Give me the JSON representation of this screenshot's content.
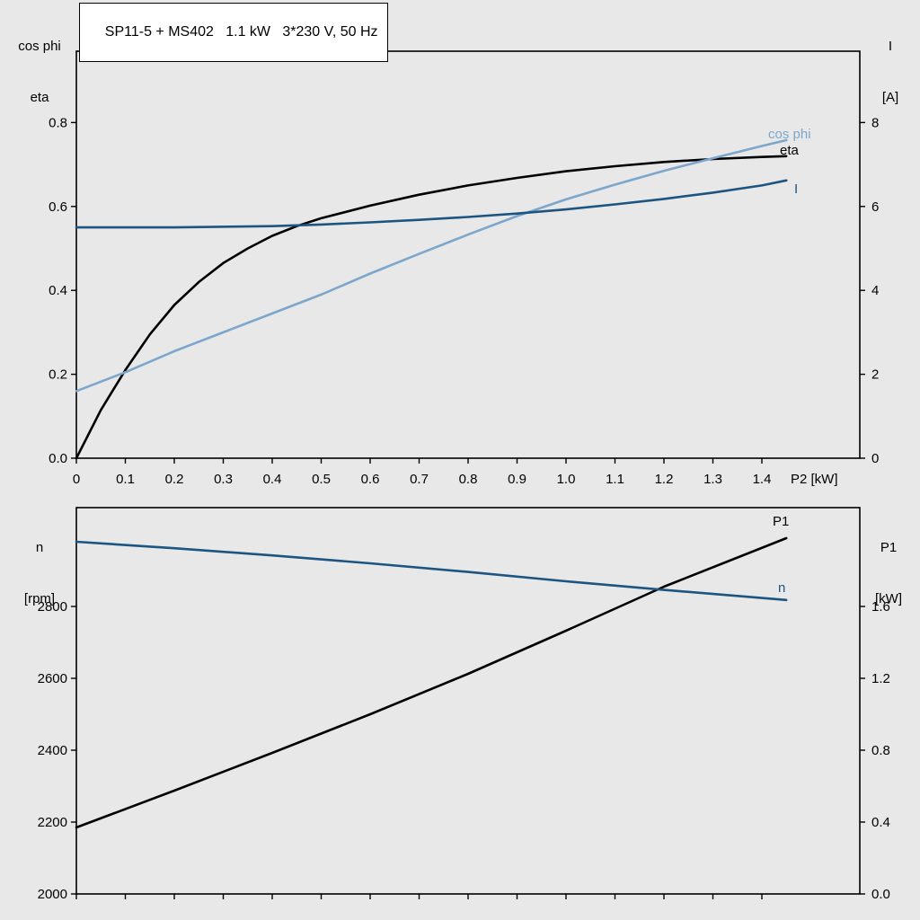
{
  "title_box": {
    "text": "SP11-5 + MS402   1.1 kW   3*230 V, 50 Hz"
  },
  "colors": {
    "black": "#000000",
    "dark_blue": "#1d5480",
    "light_blue": "#7da6cc",
    "frame": "#000000",
    "background": "#e8e8e8",
    "title_box_bg": "#ffffff"
  },
  "axis_corner_labels": {
    "top_left_line1": "cos phi",
    "top_left_line2": "eta",
    "top_right_line1": "I",
    "top_right_line2": "[A]",
    "bottom_left_line1": "n",
    "bottom_left_line2": "[rpm]",
    "bottom_right_line1": "P1",
    "bottom_right_line2": "[kW]",
    "x_axis_label": "P2 [kW]"
  },
  "curve_labels": {
    "cos_phi": "cos phi",
    "eta": "eta",
    "current": "I",
    "p1": "P1",
    "n": "n"
  },
  "chart_data": [
    {
      "type": "line",
      "title": "SP11-5 + MS402 1.1 kW 3*230 V, 50 Hz",
      "x_axis": {
        "label": "P2 [kW]",
        "range": [
          0,
          1.6
        ],
        "tick_values": [
          0,
          0.1,
          0.2,
          0.3,
          0.4,
          0.5,
          0.6,
          0.7,
          0.8,
          0.9,
          1.0,
          1.1,
          1.2,
          1.3,
          1.4
        ],
        "tick_labels": [
          "0",
          "0.1",
          "0.2",
          "0.3",
          "0.4",
          "0.5",
          "0.6",
          "0.7",
          "0.8",
          "0.9",
          "1.0",
          "1.1",
          "1.2",
          "1.3",
          "1.4"
        ]
      },
      "y_axis_left": {
        "label": "cos phi / eta",
        "range": [
          0,
          0.97
        ],
        "tick_values": [
          0.0,
          0.2,
          0.4,
          0.6,
          0.8
        ],
        "tick_labels": [
          "0.0",
          "0.2",
          "0.4",
          "0.6",
          "0.8"
        ]
      },
      "y_axis_right": {
        "label": "I [A]",
        "range": [
          0,
          9.7
        ],
        "tick_values": [
          0,
          2,
          4,
          6,
          8
        ],
        "tick_labels": [
          "0",
          "2",
          "4",
          "6",
          "8"
        ]
      },
      "grid": false,
      "series": [
        {
          "name": "eta",
          "axis": "left",
          "color": "black",
          "points": [
            [
              0,
              0
            ],
            [
              0.05,
              0.115
            ],
            [
              0.1,
              0.21
            ],
            [
              0.15,
              0.295
            ],
            [
              0.2,
              0.365
            ],
            [
              0.25,
              0.42
            ],
            [
              0.3,
              0.465
            ],
            [
              0.35,
              0.5
            ],
            [
              0.4,
              0.53
            ],
            [
              0.45,
              0.553
            ],
            [
              0.5,
              0.572
            ],
            [
              0.6,
              0.602
            ],
            [
              0.7,
              0.628
            ],
            [
              0.8,
              0.65
            ],
            [
              0.9,
              0.668
            ],
            [
              1.0,
              0.684
            ],
            [
              1.1,
              0.696
            ],
            [
              1.2,
              0.706
            ],
            [
              1.3,
              0.713
            ],
            [
              1.4,
              0.718
            ],
            [
              1.45,
              0.72
            ]
          ]
        },
        {
          "name": "cos phi",
          "axis": "left",
          "color": "light_blue",
          "points": [
            [
              0,
              0.16
            ],
            [
              0.1,
              0.205
            ],
            [
              0.2,
              0.255
            ],
            [
              0.3,
              0.3
            ],
            [
              0.4,
              0.345
            ],
            [
              0.5,
              0.39
            ],
            [
              0.6,
              0.44
            ],
            [
              0.7,
              0.487
            ],
            [
              0.8,
              0.533
            ],
            [
              0.9,
              0.577
            ],
            [
              1.0,
              0.617
            ],
            [
              1.1,
              0.652
            ],
            [
              1.2,
              0.685
            ],
            [
              1.3,
              0.715
            ],
            [
              1.4,
              0.744
            ],
            [
              1.45,
              0.758
            ]
          ]
        },
        {
          "name": "I",
          "axis": "right",
          "color": "dark_blue",
          "points": [
            [
              0,
              5.5
            ],
            [
              0.2,
              5.5
            ],
            [
              0.4,
              5.53
            ],
            [
              0.5,
              5.57
            ],
            [
              0.6,
              5.62
            ],
            [
              0.7,
              5.68
            ],
            [
              0.8,
              5.75
            ],
            [
              0.9,
              5.83
            ],
            [
              1.0,
              5.93
            ],
            [
              1.1,
              6.05
            ],
            [
              1.2,
              6.18
            ],
            [
              1.3,
              6.33
            ],
            [
              1.4,
              6.5
            ],
            [
              1.45,
              6.62
            ]
          ]
        }
      ]
    },
    {
      "type": "line",
      "title": "",
      "x_axis": {
        "label": "",
        "range": [
          0,
          1.6
        ],
        "tick_values": [
          0,
          0.1,
          0.2,
          0.3,
          0.4,
          0.5,
          0.6,
          0.7,
          0.8,
          0.9,
          1.0,
          1.1,
          1.2,
          1.3,
          1.4
        ],
        "tick_labels": []
      },
      "y_axis_left": {
        "label": "n [rpm]",
        "range": [
          2000,
          3075
        ],
        "tick_values": [
          2000,
          2200,
          2400,
          2600,
          2800
        ],
        "tick_labels": [
          "2000",
          "2200",
          "2400",
          "2600",
          "2800"
        ]
      },
      "y_axis_right": {
        "label": "P1 [kW]",
        "range": [
          0,
          2.15
        ],
        "tick_values": [
          0.0,
          0.4,
          0.8,
          1.2,
          1.6
        ],
        "tick_labels": [
          "0.0",
          "0.4",
          "0.8",
          "1.2",
          "1.6"
        ]
      },
      "grid": false,
      "series": [
        {
          "name": "P1",
          "axis": "right",
          "color": "black",
          "points": [
            [
              0,
              0.37
            ],
            [
              0.2,
              0.575
            ],
            [
              0.4,
              0.785
            ],
            [
              0.6,
              1.0
            ],
            [
              0.8,
              1.225
            ],
            [
              1.0,
              1.465
            ],
            [
              1.2,
              1.71
            ],
            [
              1.45,
              1.98
            ]
          ]
        },
        {
          "name": "n",
          "axis": "left",
          "color": "dark_blue",
          "points": [
            [
              0,
              2980
            ],
            [
              0.2,
              2962
            ],
            [
              0.4,
              2942
            ],
            [
              0.6,
              2920
            ],
            [
              0.8,
              2896
            ],
            [
              1.0,
              2870
            ],
            [
              1.2,
              2846
            ],
            [
              1.45,
              2818
            ]
          ]
        }
      ]
    }
  ]
}
